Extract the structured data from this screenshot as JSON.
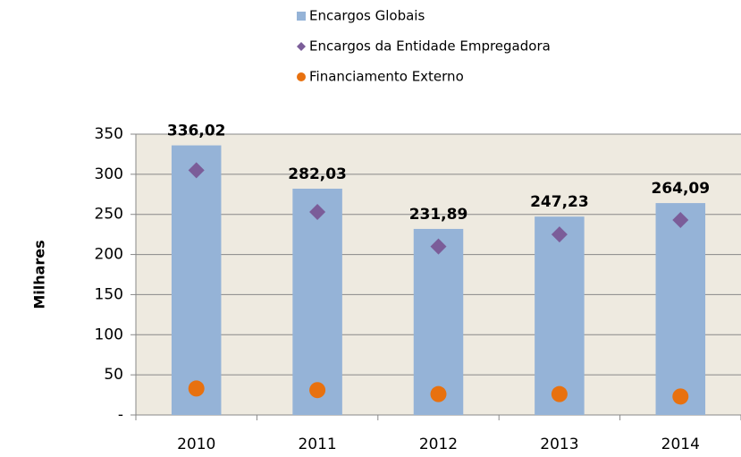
{
  "chart_data": {
    "type": "bar",
    "y_label": "Milhares",
    "categories": [
      "2010",
      "2011",
      "2012",
      "2013",
      "2014"
    ],
    "series": [
      {
        "name": "Encargos Globais",
        "type": "bar",
        "color": "#95b3d7",
        "values": [
          336.02,
          282.03,
          231.89,
          247.23,
          264.09
        ],
        "value_labels": [
          "336,02",
          "282,03",
          "231,89",
          "247,23",
          "264,09"
        ]
      },
      {
        "name": "Encargos da Entidade Empregadora",
        "type": "scatter",
        "marker": "diamond",
        "color": "#7b5d99",
        "values": [
          305,
          253,
          210,
          225,
          243
        ]
      },
      {
        "name": "Financiamento Externo",
        "type": "scatter",
        "marker": "circle",
        "color": "#e8710f",
        "values": [
          33,
          31,
          26,
          26,
          23
        ]
      }
    ],
    "ylim": [
      0,
      350
    ],
    "yticks": [
      {
        "value": 0,
        "label": "-"
      },
      50,
      100,
      150,
      200,
      250,
      300,
      350
    ],
    "grid": true,
    "legend": "top"
  }
}
